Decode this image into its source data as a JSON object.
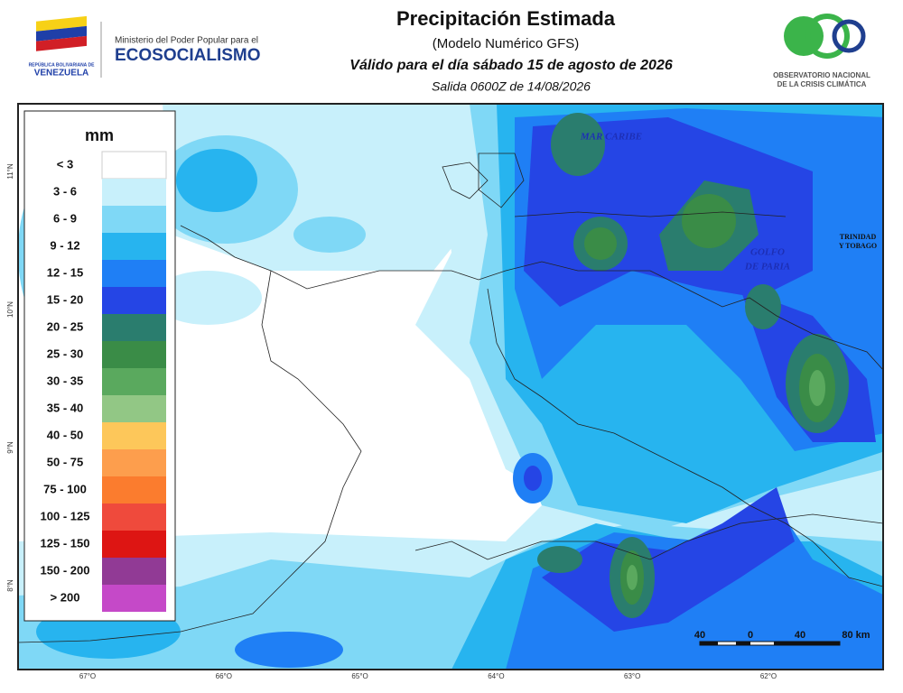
{
  "header": {
    "country_logo": {
      "line1": "REPÚBLICA BOLIVARIANA DE",
      "line2": "VENEZUELA"
    },
    "ministry": {
      "line1": "Ministerio del Poder Popular para el",
      "line2": "ECOSOCIALISMO"
    },
    "title": "Precipitación Estimada",
    "subtitle": "(Modelo Numérico GFS)",
    "valid": "Válido para el día sábado 15 de agosto de 2026",
    "output": "Salida 0600Z de 14/08/2026",
    "observatory": {
      "line1": "OBSERVATORIO NACIONAL",
      "line2": "DE LA CRISIS CLIMÁTICA"
    }
  },
  "legend": {
    "unit": "mm",
    "items": [
      {
        "label": "< 3",
        "color": "#ffffff"
      },
      {
        "label": "3 - 6",
        "color": "#c8f0fb"
      },
      {
        "label": "6 - 9",
        "color": "#7fd8f6"
      },
      {
        "label": "9 - 12",
        "color": "#27b4ef"
      },
      {
        "label": "12 - 15",
        "color": "#1f7ff5"
      },
      {
        "label": "15 - 20",
        "color": "#2545e5"
      },
      {
        "label": "20 - 25",
        "color": "#2a7d6e"
      },
      {
        "label": "25 - 30",
        "color": "#3a8c47"
      },
      {
        "label": "30 - 35",
        "color": "#5aa95e"
      },
      {
        "label": "35 - 40",
        "color": "#92c785"
      },
      {
        "label": "40 - 50",
        "color": "#fdc75a"
      },
      {
        "label": "50 - 75",
        "color": "#fd9e4d"
      },
      {
        "label": "75 - 100",
        "color": "#fb7c2e"
      },
      {
        "label": "100 - 125",
        "color": "#ef4a3c"
      },
      {
        "label": "125 - 150",
        "color": "#dd1513"
      },
      {
        "label": "150 - 200",
        "color": "#913a95"
      },
      {
        "label": "> 200",
        "color": "#c549c8"
      }
    ]
  },
  "map": {
    "places": {
      "sea": "MAR CARIBE",
      "gulf1": "GOLFO",
      "gulf2": "DE PARIA",
      "island1": "TRINIDAD",
      "island2": "Y TOBAGO"
    },
    "lon_labels": [
      "67°O",
      "66°O",
      "65°O",
      "64°O",
      "63°O",
      "62°O"
    ],
    "lat_labels": [
      "11°N",
      "10°N",
      "9°N",
      "8°N"
    ],
    "scale_labels": [
      "40",
      "0",
      "40",
      "80 km"
    ]
  }
}
